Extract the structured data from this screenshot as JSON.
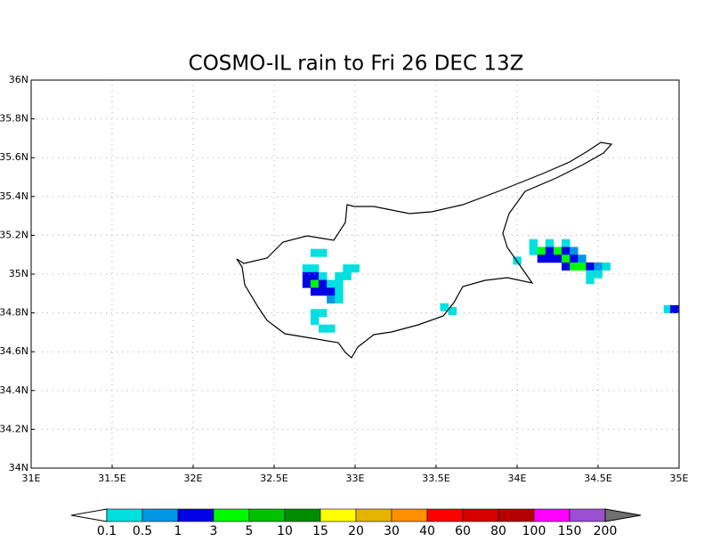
{
  "title": "COSMO-IL rain to Fri 26 DEC 13Z",
  "map": {
    "xlim": [
      31,
      35
    ],
    "ylim": [
      34,
      36
    ],
    "xticks": [
      {
        "value": 31,
        "label": "31E"
      },
      {
        "value": 31.5,
        "label": "31.5E"
      },
      {
        "value": 32,
        "label": "32E"
      },
      {
        "value": 32.5,
        "label": "32.5E"
      },
      {
        "value": 33,
        "label": "33E"
      },
      {
        "value": 33.5,
        "label": "33.5E"
      },
      {
        "value": 34,
        "label": "34E"
      },
      {
        "value": 34.5,
        "label": "34.5E"
      },
      {
        "value": 35,
        "label": "35E"
      }
    ],
    "yticks": [
      {
        "value": 34,
        "label": "34N"
      },
      {
        "value": 34.2,
        "label": "34.2N"
      },
      {
        "value": 34.4,
        "label": "34.4N"
      },
      {
        "value": 34.6,
        "label": "34.6N"
      },
      {
        "value": 34.8,
        "label": "34.8N"
      },
      {
        "value": 35,
        "label": "35N"
      },
      {
        "value": 35.2,
        "label": "35.2N"
      },
      {
        "value": 35.4,
        "label": "35.4N"
      },
      {
        "value": 35.6,
        "label": "35.6N"
      },
      {
        "value": 35.8,
        "label": "35.8N"
      },
      {
        "value": 36,
        "label": "36N"
      }
    ],
    "grid": true,
    "rain_cells": [
      [
        32.75,
        35.11,
        0.2
      ],
      [
        32.8,
        35.11,
        0.2
      ],
      [
        32.7,
        35.03,
        0.3
      ],
      [
        32.75,
        35.03,
        0.3
      ],
      [
        32.95,
        35.03,
        0.2
      ],
      [
        33.0,
        35.03,
        0.2
      ],
      [
        32.7,
        34.99,
        1.5
      ],
      [
        32.75,
        34.99,
        2
      ],
      [
        32.8,
        34.99,
        0.3
      ],
      [
        32.9,
        34.99,
        0.3
      ],
      [
        32.95,
        34.99,
        0.3
      ],
      [
        32.7,
        34.95,
        2
      ],
      [
        32.75,
        34.95,
        4
      ],
      [
        32.8,
        34.95,
        1.5
      ],
      [
        32.85,
        34.95,
        0.3
      ],
      [
        32.9,
        34.95,
        0.3
      ],
      [
        32.75,
        34.91,
        2
      ],
      [
        32.8,
        34.91,
        2
      ],
      [
        32.85,
        34.91,
        1.5
      ],
      [
        32.9,
        34.91,
        0.3
      ],
      [
        32.85,
        34.87,
        0.7
      ],
      [
        32.9,
        34.87,
        0.3
      ],
      [
        32.75,
        34.8,
        0.3
      ],
      [
        32.8,
        34.8,
        0.3
      ],
      [
        32.75,
        34.76,
        0.3
      ],
      [
        32.8,
        34.72,
        0.3
      ],
      [
        32.85,
        34.72,
        0.3
      ],
      [
        33.55,
        34.83,
        0.3
      ],
      [
        33.6,
        34.81,
        0.3
      ],
      [
        34.0,
        35.07,
        0.3
      ],
      [
        34.1,
        35.16,
        0.3
      ],
      [
        34.2,
        35.16,
        0.3
      ],
      [
        34.3,
        35.16,
        0.3
      ],
      [
        34.1,
        35.12,
        0.3
      ],
      [
        34.15,
        35.12,
        4
      ],
      [
        34.2,
        35.12,
        2
      ],
      [
        34.25,
        35.12,
        4
      ],
      [
        34.3,
        35.12,
        2
      ],
      [
        34.35,
        35.12,
        0.7
      ],
      [
        34.15,
        35.08,
        2
      ],
      [
        34.2,
        35.08,
        2
      ],
      [
        34.25,
        35.08,
        2
      ],
      [
        34.3,
        35.08,
        4
      ],
      [
        34.35,
        35.08,
        2
      ],
      [
        34.4,
        35.08,
        0.7
      ],
      [
        34.3,
        35.04,
        2
      ],
      [
        34.35,
        35.04,
        4
      ],
      [
        34.4,
        35.04,
        4
      ],
      [
        34.45,
        35.04,
        2
      ],
      [
        34.5,
        35.04,
        0.7
      ],
      [
        34.45,
        35.0,
        0.3
      ],
      [
        34.5,
        35.0,
        0.3
      ],
      [
        34.55,
        35.04,
        0.3
      ],
      [
        34.45,
        34.97,
        0.3
      ],
      [
        34.93,
        34.82,
        0.3
      ],
      [
        34.97,
        34.82,
        2
      ]
    ]
  },
  "colorbar": {
    "levels": [
      0.1,
      0.5,
      1,
      3,
      5,
      10,
      15,
      20,
      30,
      40,
      60,
      80,
      100,
      150,
      200
    ],
    "colors": [
      "#ffffff",
      "#00e0e0",
      "#0096e6",
      "#0000e6",
      "#00fa00",
      "#00c000",
      "#008c00",
      "#ffff00",
      "#e6b400",
      "#ff9000",
      "#ff0000",
      "#d60000",
      "#b40000",
      "#ff00ff",
      "#9a50d0",
      "#707070"
    ]
  }
}
